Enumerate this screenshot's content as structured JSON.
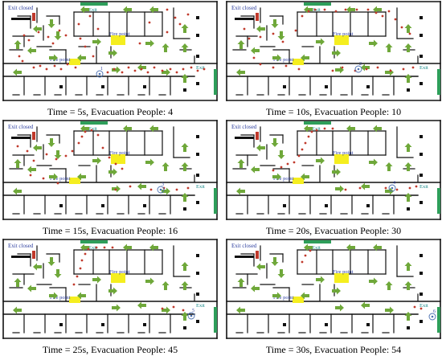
{
  "labels": {
    "exit_closed": "Exit closed",
    "exit": "Exit",
    "fire_point": "Fire point"
  },
  "colors": {
    "wall": "#111111",
    "exit_open": "#2e9e5a",
    "exit_closed": "#c0392b",
    "fire": "#f5ee1f",
    "arrow": "#6fa83a",
    "person": "#c0392b",
    "label_blue": "#2c3e9e",
    "label_teal": "#1a8a8a"
  },
  "icons": [
    "arrow-icon",
    "person-dot-icon",
    "marker-circle-icon",
    "exit-bar-icon",
    "fire-zone-icon"
  ],
  "panels": [
    {
      "caption": "Time = 5s, Evacuation People: 4",
      "marker": "1"
    },
    {
      "caption": "Time = 10s, Evacuation People: 10",
      "marker": "2"
    },
    {
      "caption": "Time = 15s, Evacuation People: 16",
      "marker": "3"
    },
    {
      "caption": "Time = 20s, Evacuation People: 30",
      "marker": "4"
    },
    {
      "caption": "Time = 25s, Evacuation People: 45",
      "marker": "5"
    },
    {
      "caption": "Time = 30s, Evacuation People: 54",
      "marker": "6"
    }
  ]
}
